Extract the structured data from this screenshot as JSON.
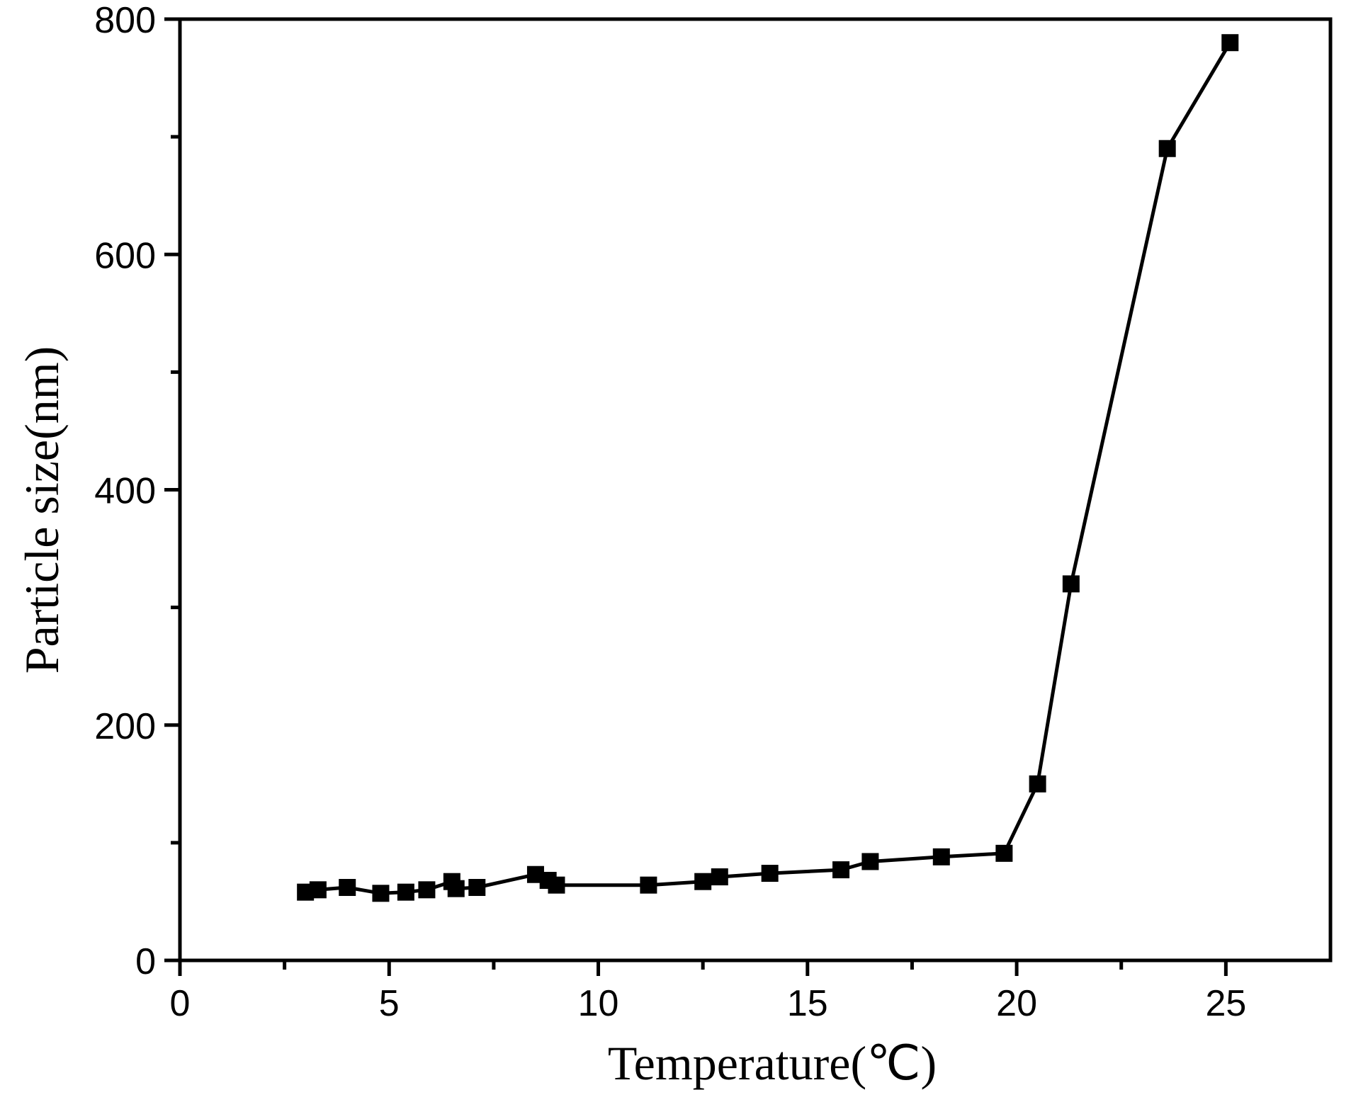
{
  "chart_data": {
    "type": "line",
    "title": "",
    "xlabel": "Temperature(℃)",
    "ylabel": "Particle size(nm)",
    "xlim": [
      0,
      27.5
    ],
    "ylim": [
      0,
      800
    ],
    "x_ticks": [
      0,
      5,
      10,
      15,
      20,
      25
    ],
    "y_ticks": [
      0,
      200,
      400,
      600,
      800
    ],
    "x_minor_ticks": [
      2.5,
      7.5,
      12.5,
      17.5,
      22.5
    ],
    "y_minor_ticks": [
      100,
      300,
      500,
      700
    ],
    "grid": false,
    "legend": "none",
    "marker": "square",
    "color": "#000000",
    "series": [
      {
        "x": [
          3.0,
          3.3,
          4.0,
          4.8,
          5.4,
          5.9,
          6.5,
          6.6,
          7.1,
          8.5,
          8.8,
          9.0,
          11.2,
          12.5,
          12.9,
          14.1,
          15.8,
          16.5,
          18.2,
          19.7,
          20.5,
          21.3,
          23.6,
          25.1
        ],
        "y": [
          58,
          60,
          62,
          57,
          58,
          60,
          67,
          61,
          62,
          73,
          68,
          64,
          64,
          67,
          71,
          74,
          77,
          84,
          88,
          91,
          150,
          320,
          690,
          780
        ]
      }
    ]
  }
}
